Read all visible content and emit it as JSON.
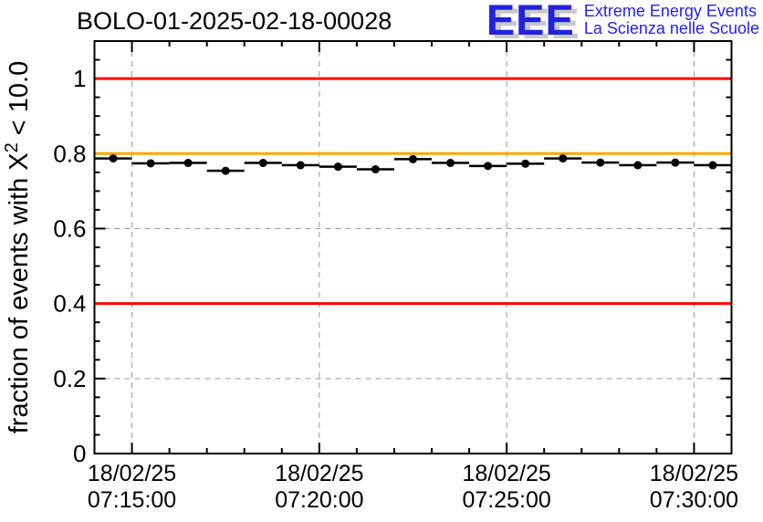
{
  "header": {
    "title": "BOLO-01-2025-02-18-00028",
    "logo": {
      "acronym": "EEE",
      "line1": "Extreme Energy Events",
      "line2": "La Scienza nelle Scuole",
      "letters_color": "#2222dd",
      "shadow_color": "#c8c8c8",
      "text_color": "#2222ee"
    }
  },
  "chart_data": {
    "type": "scatter",
    "title": "BOLO-01-2025-02-18-00028",
    "ylabel_prefix": "fraction of events with X",
    "ylabel_sup": "2",
    "ylabel_suffix": " < 10.0",
    "date_label": "18/02/25",
    "x_times": [
      "07:14:30",
      "07:15:30",
      "07:16:30",
      "07:17:30",
      "07:18:30",
      "07:19:30",
      "07:20:30",
      "07:21:30",
      "07:22:30",
      "07:23:30",
      "07:24:30",
      "07:25:30",
      "07:26:30",
      "07:27:30",
      "07:28:30",
      "07:29:30",
      "07:30:30"
    ],
    "values": [
      0.787,
      0.774,
      0.775,
      0.754,
      0.775,
      0.769,
      0.765,
      0.758,
      0.785,
      0.775,
      0.767,
      0.773,
      0.787,
      0.776,
      0.769,
      0.776,
      0.769
    ],
    "yerr": 0.005,
    "bin_width_seconds": 60,
    "xlim": [
      "07:14:00",
      "07:31:00"
    ],
    "ylim": [
      0,
      1.1
    ],
    "yticks": [
      0,
      0.2,
      0.4,
      0.6,
      0.8,
      1
    ],
    "ytick_labels": [
      "0",
      "0.2",
      "0.4",
      "0.6",
      "0.8",
      "1"
    ],
    "y_minor_step": 0.05,
    "xticks_major": [
      "07:15:00",
      "07:20:00",
      "07:25:00",
      "07:30:00"
    ],
    "xtick_labels": [
      [
        "18/02/25",
        "07:15:00"
      ],
      [
        "18/02/25",
        "07:20:00"
      ],
      [
        "18/02/25",
        "07:25:00"
      ],
      [
        "18/02/25",
        "07:30:00"
      ]
    ],
    "x_minor_step_seconds": 60,
    "grid": true,
    "grid_color": "#999999",
    "axis_color": "#000000",
    "marker_color": "#000000",
    "background_color": "#ffffff",
    "reference_lines": [
      {
        "y": 1.0,
        "color": "#ff0000"
      },
      {
        "y": 0.8,
        "color": "#ffa500"
      },
      {
        "y": 0.4,
        "color": "#ff0000"
      }
    ]
  }
}
